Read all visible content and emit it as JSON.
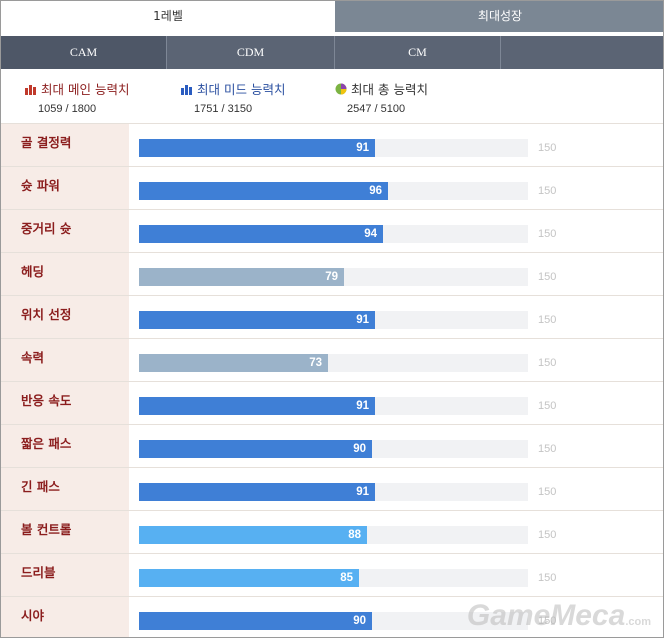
{
  "tabs": {
    "level1": "1레벨",
    "max_growth": "최대성장"
  },
  "positions": [
    "CAM",
    "CDM",
    "CM"
  ],
  "summary": [
    {
      "label": "최대 메인 능력치",
      "value": "1059 / 1800",
      "icon": "bar-chart-icon-red"
    },
    {
      "label": "최대 미드 능력치",
      "value": "1751 / 3150",
      "icon": "bar-chart-icon-blue"
    },
    {
      "label": "최대 총 능력치",
      "value": "2547 / 5100",
      "icon": "pie-chart-icon"
    }
  ],
  "max_value": 150,
  "max_value_label": "150",
  "stats": [
    {
      "label": "골 결정력",
      "value": 91,
      "display": "91",
      "tier": "main"
    },
    {
      "label": "슛 파워",
      "value": 96,
      "display": "96",
      "tier": "main"
    },
    {
      "label": "중거리 슛",
      "value": 94,
      "display": "94",
      "tier": "main"
    },
    {
      "label": "헤딩",
      "value": 79,
      "display": "79",
      "tier": "low"
    },
    {
      "label": "위치 선정",
      "value": 91,
      "display": "91",
      "tier": "main"
    },
    {
      "label": "속력",
      "value": 73,
      "display": "73",
      "tier": "low"
    },
    {
      "label": "반응 속도",
      "value": 91,
      "display": "91",
      "tier": "main"
    },
    {
      "label": "짧은 패스",
      "value": 90,
      "display": "90",
      "tier": "main"
    },
    {
      "label": "긴 패스",
      "value": 91,
      "display": "91",
      "tier": "main"
    },
    {
      "label": "볼 컨트롤",
      "value": 88,
      "display": "88",
      "tier": "mid"
    },
    {
      "label": "드리블",
      "value": 85,
      "display": "85",
      "tier": "mid"
    },
    {
      "label": "시야",
      "value": 90,
      "display": "90",
      "tier": "main"
    }
  ],
  "colors": {
    "main": "#3f7fd6",
    "mid": "#57b0f2",
    "low": "#9bb3c9"
  },
  "watermark": {
    "text": "GameMeca",
    "suffix": ".com"
  }
}
